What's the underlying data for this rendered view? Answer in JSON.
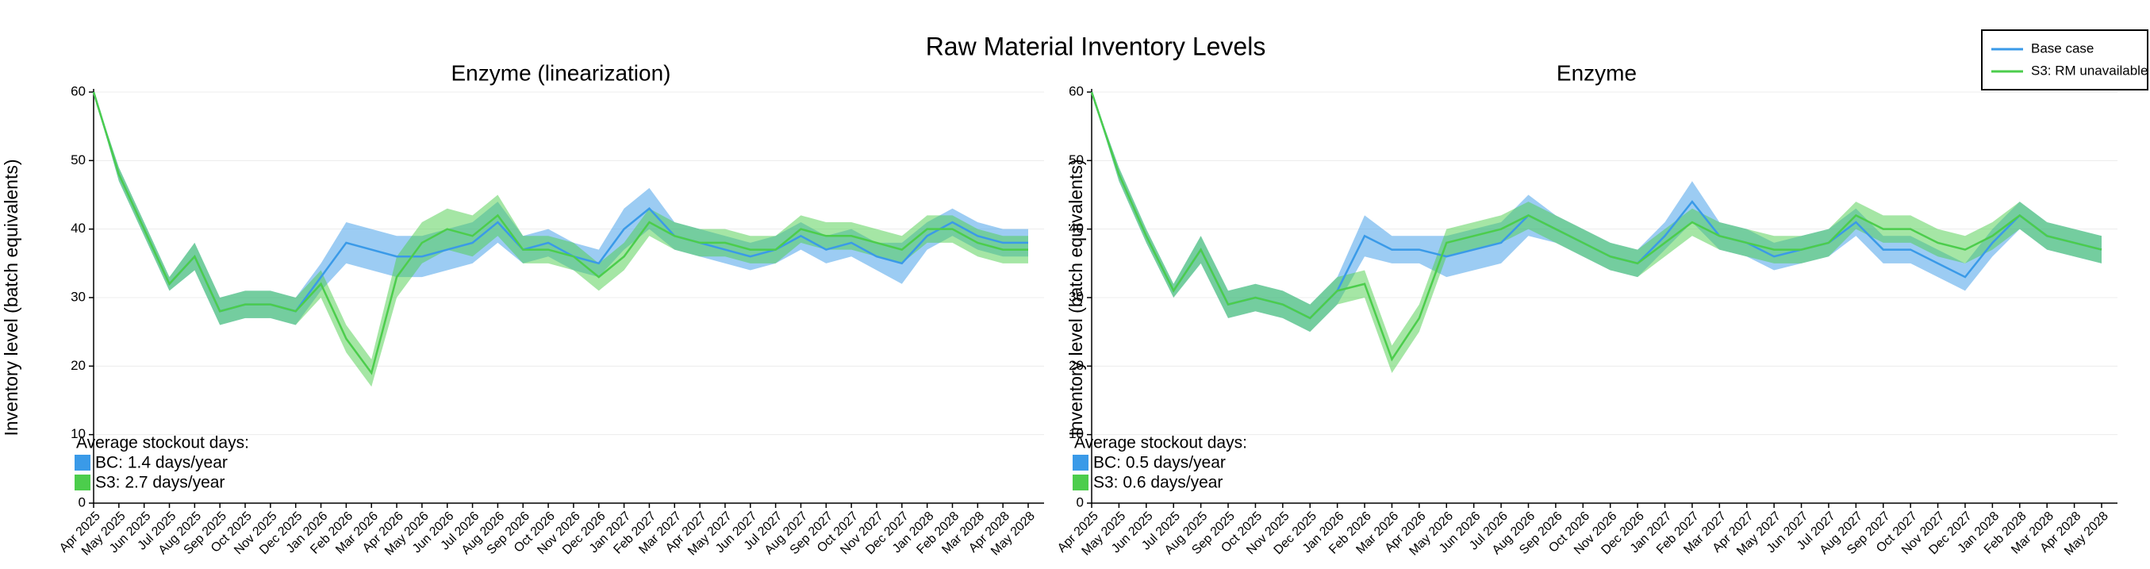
{
  "title": "Raw Material Inventory Levels",
  "chart_data": [
    {
      "type": "line",
      "title": "Enzyme (linearization)",
      "ylabel": "Inventory level (batch equivalents)",
      "categories": [
        "Apr 2025",
        "May 2025",
        "Jun 2025",
        "Jul 2025",
        "Aug 2025",
        "Sep 2025",
        "Oct 2025",
        "Nov 2025",
        "Dec 2025",
        "Jan 2026",
        "Feb 2026",
        "Mar 2026",
        "Apr 2026",
        "May 2026",
        "Jun 2026",
        "Jul 2026",
        "Aug 2026",
        "Sep 2026",
        "Oct 2026",
        "Nov 2026",
        "Dec 2026",
        "Jan 2027",
        "Feb 2027",
        "Mar 2027",
        "Apr 2027",
        "May 2027",
        "Jun 2027",
        "Jul 2027",
        "Aug 2027",
        "Sep 2027",
        "Oct 2027",
        "Nov 2027",
        "Dec 2027",
        "Jan 2028",
        "Feb 2028",
        "Mar 2028",
        "Apr 2028",
        "May 2028"
      ],
      "ylim": [
        0,
        60
      ],
      "yticks": [
        0,
        10,
        20,
        30,
        40,
        50,
        60
      ],
      "grid": true,
      "series": [
        {
          "name": "Base case",
          "color": "#3a9ae8",
          "values": [
            60,
            48,
            40,
            32,
            36,
            28,
            29,
            29,
            28,
            33,
            38,
            37,
            36,
            36,
            37,
            38,
            41,
            37,
            38,
            36,
            35,
            40,
            43,
            39,
            38,
            37,
            36,
            37,
            39,
            37,
            38,
            36,
            35,
            39,
            41,
            39,
            38,
            38
          ],
          "lower": [
            60,
            47,
            39,
            31,
            34,
            26,
            27,
            27,
            26,
            31,
            35,
            34,
            33,
            33,
            34,
            35,
            38,
            35,
            36,
            34,
            33,
            37,
            40,
            37,
            36,
            35,
            34,
            35,
            37,
            35,
            36,
            34,
            32,
            37,
            39,
            37,
            36,
            36
          ],
          "upper": [
            60,
            49,
            41,
            33,
            38,
            30,
            31,
            31,
            30,
            35,
            41,
            40,
            39,
            39,
            40,
            41,
            44,
            39,
            40,
            38,
            37,
            43,
            46,
            41,
            40,
            39,
            38,
            39,
            41,
            39,
            40,
            38,
            38,
            41,
            43,
            41,
            40,
            40
          ]
        },
        {
          "name": "S3: RM unavailable",
          "color": "#4ccd4c",
          "values": [
            60,
            48,
            40,
            32,
            36,
            28,
            29,
            29,
            28,
            32,
            24,
            19,
            33,
            38,
            40,
            39,
            42,
            37,
            37,
            36,
            33,
            36,
            41,
            39,
            38,
            38,
            37,
            37,
            40,
            39,
            39,
            38,
            37,
            40,
            40,
            38,
            37,
            37
          ],
          "lower": [
            60,
            47,
            39,
            31,
            34,
            26,
            27,
            27,
            26,
            30,
            22,
            17,
            30,
            35,
            37,
            36,
            39,
            35,
            35,
            34,
            31,
            34,
            39,
            37,
            36,
            36,
            35,
            35,
            38,
            37,
            37,
            36,
            35,
            38,
            38,
            36,
            35,
            35
          ],
          "upper": [
            60,
            49,
            41,
            33,
            38,
            30,
            31,
            31,
            30,
            34,
            26,
            21,
            36,
            41,
            43,
            42,
            45,
            39,
            39,
            38,
            35,
            38,
            43,
            41,
            40,
            40,
            39,
            39,
            42,
            41,
            41,
            40,
            39,
            42,
            42,
            40,
            39,
            39
          ]
        }
      ],
      "annotation": {
        "title": "Average stockout days:",
        "items": [
          "BC: 1.4 days/year",
          "S3: 2.7 days/year"
        ]
      }
    },
    {
      "type": "line",
      "title": "Enzyme",
      "ylabel": "Inventory level (batch equivalents)",
      "categories": [
        "Apr 2025",
        "May 2025",
        "Jun 2025",
        "Jul 2025",
        "Aug 2025",
        "Sep 2025",
        "Oct 2025",
        "Nov 2025",
        "Dec 2025",
        "Jan 2026",
        "Feb 2026",
        "Mar 2026",
        "Apr 2026",
        "May 2026",
        "Jun 2026",
        "Jul 2026",
        "Aug 2026",
        "Sep 2026",
        "Oct 2026",
        "Nov 2026",
        "Dec 2026",
        "Jan 2027",
        "Feb 2027",
        "Mar 2027",
        "Apr 2027",
        "May 2027",
        "Jun 2027",
        "Jul 2027",
        "Aug 2027",
        "Sep 2027",
        "Oct 2027",
        "Nov 2027",
        "Dec 2027",
        "Jan 2028",
        "Feb 2028",
        "Mar 2028",
        "Apr 2028",
        "May 2028"
      ],
      "ylim": [
        0,
        60
      ],
      "yticks": [
        0,
        10,
        20,
        30,
        40,
        50,
        60
      ],
      "grid": true,
      "series": [
        {
          "name": "Base case",
          "color": "#3a9ae8",
          "values": [
            60,
            48,
            39,
            31,
            37,
            29,
            30,
            29,
            27,
            31,
            39,
            37,
            37,
            36,
            37,
            38,
            42,
            40,
            38,
            36,
            35,
            39,
            44,
            39,
            38,
            36,
            37,
            38,
            41,
            37,
            37,
            35,
            33,
            38,
            42,
            39,
            38,
            37
          ],
          "lower": [
            60,
            47,
            38,
            30,
            35,
            27,
            28,
            27,
            25,
            29,
            36,
            35,
            35,
            33,
            34,
            35,
            39,
            38,
            36,
            34,
            33,
            37,
            41,
            37,
            36,
            34,
            35,
            36,
            39,
            35,
            35,
            33,
            31,
            36,
            40,
            37,
            36,
            35
          ],
          "upper": [
            60,
            49,
            40,
            32,
            39,
            31,
            32,
            31,
            29,
            33,
            42,
            39,
            39,
            39,
            40,
            41,
            45,
            42,
            40,
            38,
            37,
            41,
            47,
            41,
            40,
            38,
            39,
            40,
            43,
            39,
            39,
            37,
            35,
            40,
            44,
            41,
            40,
            39
          ]
        },
        {
          "name": "S3: RM unavailable",
          "color": "#4ccd4c",
          "values": [
            60,
            48,
            39,
            31,
            37,
            29,
            30,
            29,
            27,
            31,
            32,
            21,
            27,
            38,
            39,
            40,
            42,
            40,
            38,
            36,
            35,
            38,
            41,
            39,
            38,
            37,
            37,
            38,
            42,
            40,
            40,
            38,
            37,
            39,
            42,
            39,
            38,
            37
          ],
          "lower": [
            60,
            47,
            38,
            30,
            35,
            27,
            28,
            27,
            25,
            29,
            30,
            19,
            25,
            36,
            37,
            38,
            40,
            38,
            36,
            34,
            33,
            36,
            39,
            37,
            36,
            35,
            35,
            36,
            40,
            38,
            38,
            36,
            35,
            37,
            40,
            37,
            36,
            35
          ],
          "upper": [
            60,
            49,
            40,
            32,
            39,
            31,
            32,
            31,
            29,
            33,
            34,
            23,
            29,
            40,
            41,
            42,
            44,
            42,
            40,
            38,
            37,
            40,
            43,
            41,
            40,
            39,
            39,
            40,
            44,
            42,
            42,
            40,
            39,
            41,
            44,
            41,
            40,
            39
          ]
        }
      ],
      "annotation": {
        "title": "Average stockout days:",
        "items": [
          "BC: 0.5 days/year",
          "S3: 0.6 days/year"
        ]
      }
    }
  ]
}
